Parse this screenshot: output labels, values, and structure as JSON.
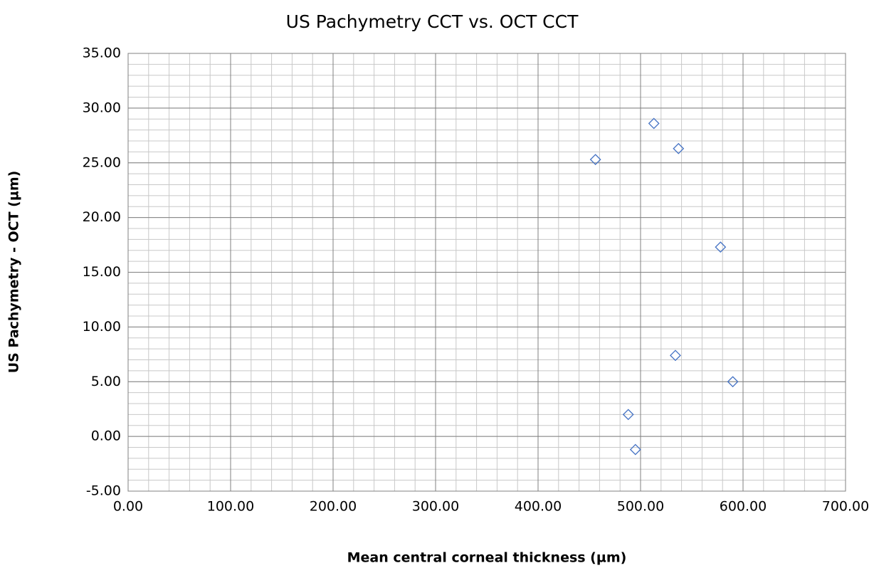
{
  "chart_data": {
    "type": "scatter",
    "title": "US Pachymetry CCT vs. OCT CCT",
    "xlabel": "Mean central corneal thickness (µm)",
    "ylabel": "US Pachymetry - OCT (µm)",
    "series": [
      {
        "name": "US Pachymetry - OCT",
        "color": "#4472c4",
        "x": [
          456,
          513,
          537,
          578,
          534,
          590,
          488,
          495
        ],
        "values": [
          25.3,
          28.6,
          26.3,
          17.3,
          7.4,
          5.0,
          2.0,
          -1.2
        ]
      }
    ],
    "xlim": [
      0,
      700
    ],
    "xticks": [
      {
        "value": 0,
        "label": "0.00"
      },
      {
        "value": 100,
        "label": "100.00"
      },
      {
        "value": 200,
        "label": "200.00"
      },
      {
        "value": 300,
        "label": "300.00"
      },
      {
        "value": 400,
        "label": "400.00"
      },
      {
        "value": 500,
        "label": "500.00"
      },
      {
        "value": 600,
        "label": "600.00"
      },
      {
        "value": 700,
        "label": "700.00"
      }
    ],
    "ylim": [
      -5,
      35
    ],
    "yticks": [
      {
        "value": -5,
        "label": "-5.00"
      },
      {
        "value": 0,
        "label": "0.00"
      },
      {
        "value": 5,
        "label": "5.00"
      },
      {
        "value": 10,
        "label": "10.00"
      },
      {
        "value": 15,
        "label": "15.00"
      },
      {
        "value": 20,
        "label": "20.00"
      },
      {
        "value": 25,
        "label": "25.00"
      },
      {
        "value": 30,
        "label": "30.00"
      },
      {
        "value": 35,
        "label": "35.00"
      }
    ],
    "x_minor_step": 20,
    "y_minor_step": 1,
    "grid": true
  }
}
